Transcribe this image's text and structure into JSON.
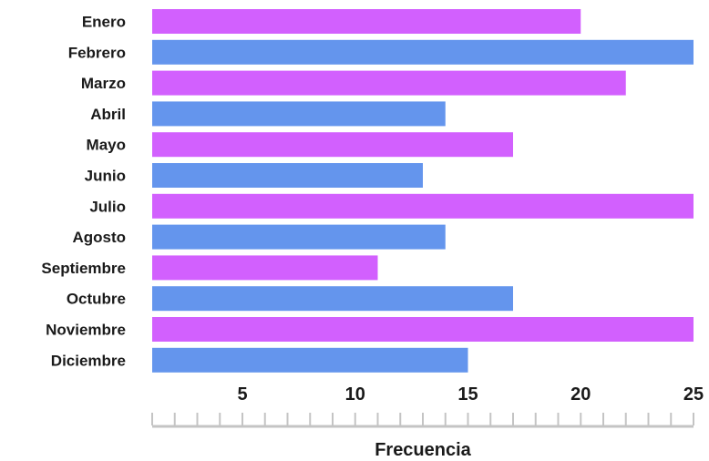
{
  "chart_data": {
    "type": "bar",
    "orientation": "horizontal",
    "categories": [
      "Enero",
      "Febrero",
      "Marzo",
      "Abril",
      "Mayo",
      "Junio",
      "Julio",
      "Agosto",
      "Septiembre",
      "Octubre",
      "Noviembre",
      "Diciembre"
    ],
    "values": [
      20,
      25,
      22,
      14,
      17,
      13,
      25,
      14,
      11,
      17,
      25,
      15
    ],
    "xlabel": "Frecuencia",
    "ylabel": "",
    "xlim": [
      1,
      25
    ],
    "xticks": [
      5,
      10,
      15,
      20,
      25
    ],
    "colors": [
      "#d260fe",
      "#6495ed"
    ],
    "grid": false
  }
}
